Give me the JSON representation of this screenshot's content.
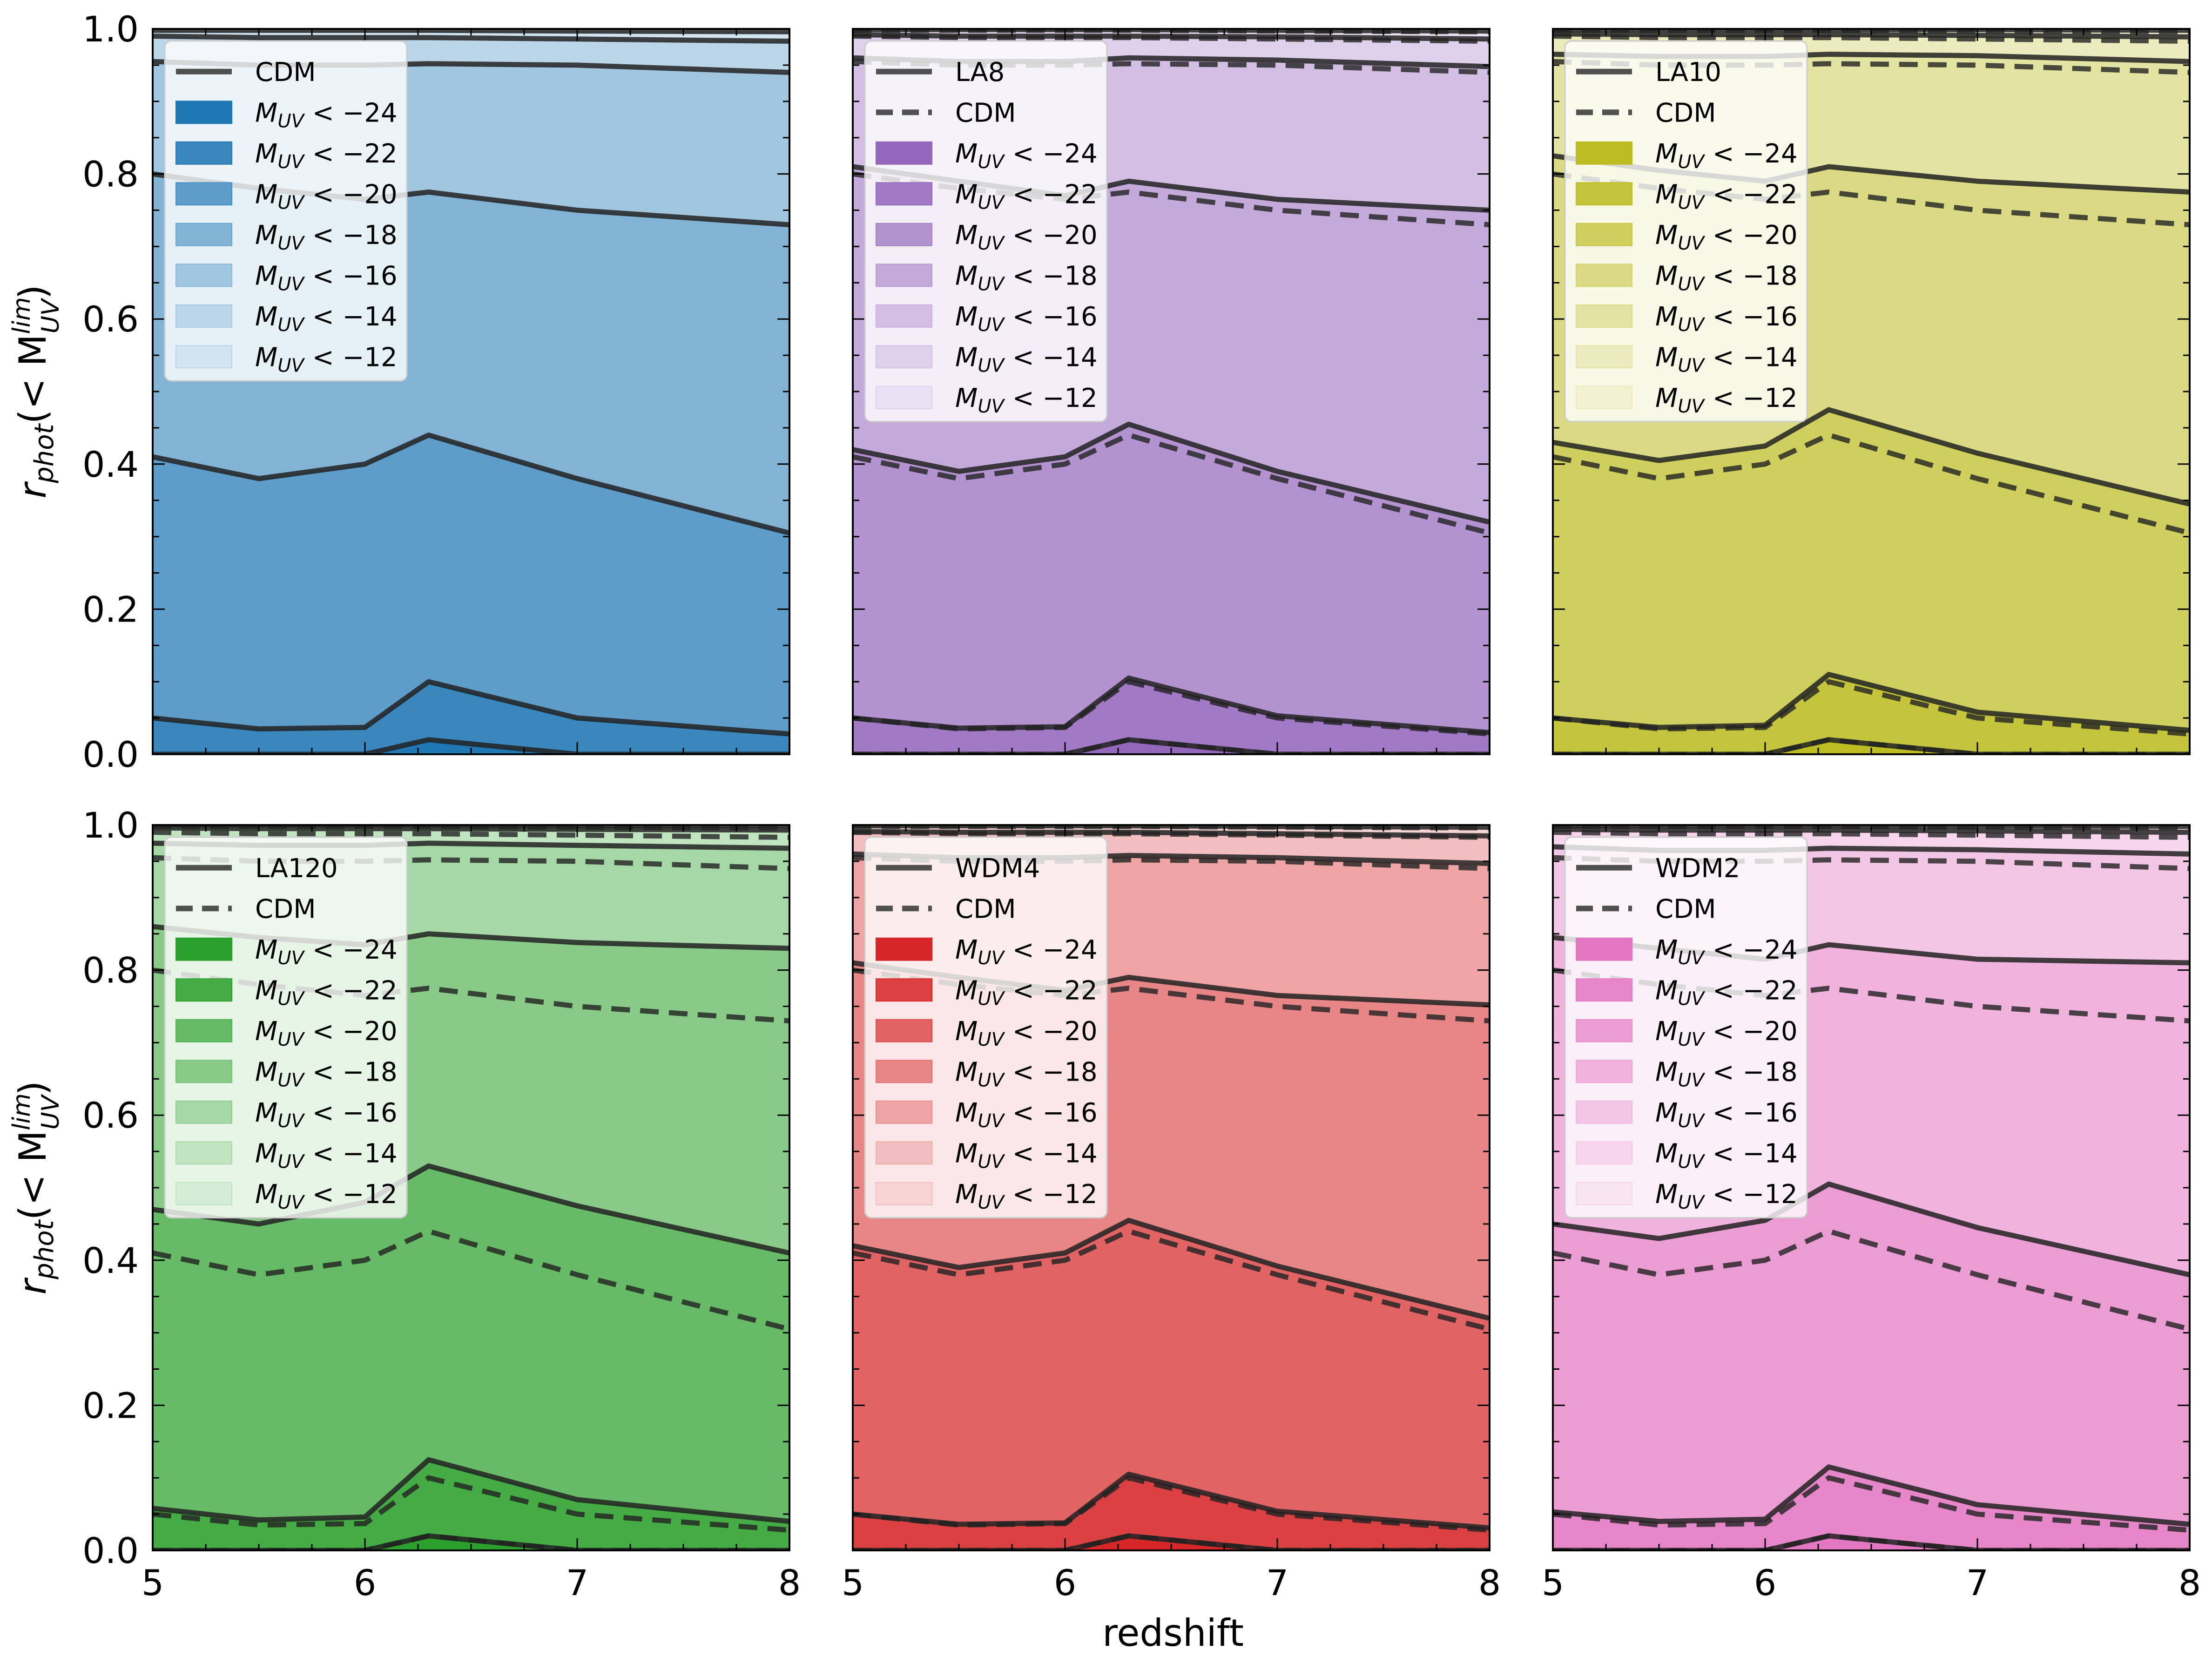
{
  "chart_data": {
    "type": "area",
    "title": "",
    "xlabel": "redshift",
    "ylabel": "r_phot(< M_UV^lim)",
    "xlim": [
      5,
      8
    ],
    "ylim": [
      0,
      1
    ],
    "xticks": [
      "5",
      "6",
      "7",
      "8"
    ],
    "yticks": [
      "0.0",
      "0.2",
      "0.4",
      "0.6",
      "0.8",
      "1.0"
    ],
    "x": [
      5,
      5.5,
      6,
      6.3,
      7,
      8
    ],
    "thresholds": [
      "-24",
      "-22",
      "-20",
      "-18",
      "-16",
      "-14",
      "-12"
    ],
    "legend_position": "upper-left",
    "cdm_curves": [
      [
        0.0,
        0.0,
        0.0,
        0.02,
        0.0,
        0.0
      ],
      [
        0.05,
        0.035,
        0.037,
        0.1,
        0.05,
        0.028
      ],
      [
        0.41,
        0.38,
        0.4,
        0.44,
        0.38,
        0.305
      ],
      [
        0.8,
        0.78,
        0.765,
        0.775,
        0.75,
        0.73
      ],
      [
        0.955,
        0.95,
        0.95,
        0.952,
        0.95,
        0.94
      ],
      [
        0.99,
        0.988,
        0.988,
        0.988,
        0.986,
        0.983
      ],
      [
        0.998,
        0.998,
        0.998,
        0.998,
        0.997,
        0.996
      ]
    ],
    "panels": [
      {
        "model": "CDM",
        "color": "#1f77b4",
        "legend_model_label": "CDM",
        "show_cdm_reference": false,
        "curves": [
          [
            0.0,
            0.0,
            0.0,
            0.02,
            0.0,
            0.0
          ],
          [
            0.05,
            0.035,
            0.037,
            0.1,
            0.05,
            0.028
          ],
          [
            0.41,
            0.38,
            0.4,
            0.44,
            0.38,
            0.305
          ],
          [
            0.8,
            0.78,
            0.765,
            0.775,
            0.75,
            0.73
          ],
          [
            0.955,
            0.95,
            0.95,
            0.952,
            0.95,
            0.94
          ],
          [
            0.99,
            0.988,
            0.988,
            0.988,
            0.986,
            0.983
          ],
          [
            0.998,
            0.998,
            0.998,
            0.998,
            0.997,
            0.996
          ]
        ]
      },
      {
        "model": "LA8",
        "color": "#9467bd",
        "legend_model_label": "LA8",
        "show_cdm_reference": true,
        "curves": [
          [
            0.0,
            0.0,
            0.0,
            0.02,
            0.0,
            0.0
          ],
          [
            0.05,
            0.036,
            0.038,
            0.105,
            0.053,
            0.03
          ],
          [
            0.42,
            0.39,
            0.41,
            0.455,
            0.39,
            0.32
          ],
          [
            0.81,
            0.79,
            0.77,
            0.79,
            0.765,
            0.75
          ],
          [
            0.96,
            0.955,
            0.955,
            0.96,
            0.957,
            0.948
          ],
          [
            0.992,
            0.99,
            0.99,
            0.99,
            0.989,
            0.986
          ],
          [
            0.999,
            0.999,
            0.999,
            0.999,
            0.998,
            0.997
          ]
        ]
      },
      {
        "model": "LA10",
        "color": "#bcbd22",
        "legend_model_label": "LA10",
        "show_cdm_reference": true,
        "curves": [
          [
            0.0,
            0.0,
            0.0,
            0.02,
            0.0,
            0.0
          ],
          [
            0.05,
            0.037,
            0.04,
            0.11,
            0.058,
            0.033
          ],
          [
            0.43,
            0.405,
            0.425,
            0.475,
            0.415,
            0.345
          ],
          [
            0.825,
            0.805,
            0.79,
            0.81,
            0.79,
            0.775
          ],
          [
            0.965,
            0.962,
            0.962,
            0.965,
            0.963,
            0.955
          ],
          [
            0.993,
            0.992,
            0.992,
            0.992,
            0.991,
            0.989
          ],
          [
            0.999,
            0.999,
            0.999,
            0.999,
            0.999,
            0.998
          ]
        ]
      },
      {
        "model": "LA120",
        "color": "#2ca02c",
        "legend_model_label": "LA120",
        "show_cdm_reference": true,
        "curves": [
          [
            0.0,
            0.0,
            0.0,
            0.02,
            0.0,
            0.0
          ],
          [
            0.058,
            0.042,
            0.046,
            0.125,
            0.07,
            0.04
          ],
          [
            0.47,
            0.45,
            0.48,
            0.53,
            0.475,
            0.41
          ],
          [
            0.86,
            0.845,
            0.835,
            0.85,
            0.838,
            0.83
          ],
          [
            0.975,
            0.972,
            0.972,
            0.975,
            0.972,
            0.968
          ],
          [
            0.996,
            0.995,
            0.995,
            0.995,
            0.994,
            0.993
          ],
          [
            1.0,
            1.0,
            1.0,
            1.0,
            0.999,
            0.999
          ]
        ]
      },
      {
        "model": "WDM4",
        "color": "#d62728",
        "legend_model_label": "WDM4",
        "show_cdm_reference": true,
        "curves": [
          [
            0.0,
            0.0,
            0.0,
            0.02,
            0.0,
            0.0
          ],
          [
            0.05,
            0.036,
            0.038,
            0.105,
            0.054,
            0.031
          ],
          [
            0.42,
            0.39,
            0.41,
            0.455,
            0.392,
            0.32
          ],
          [
            0.81,
            0.79,
            0.772,
            0.79,
            0.765,
            0.752
          ],
          [
            0.96,
            0.955,
            0.955,
            0.958,
            0.955,
            0.947
          ],
          [
            0.991,
            0.99,
            0.99,
            0.99,
            0.988,
            0.985
          ],
          [
            0.999,
            0.999,
            0.999,
            0.999,
            0.998,
            0.997
          ]
        ]
      },
      {
        "model": "WDM2",
        "color": "#e377c2",
        "legend_model_label": "WDM2",
        "show_cdm_reference": true,
        "curves": [
          [
            0.0,
            0.0,
            0.0,
            0.02,
            0.0,
            0.0
          ],
          [
            0.053,
            0.04,
            0.043,
            0.115,
            0.063,
            0.036
          ],
          [
            0.45,
            0.43,
            0.455,
            0.505,
            0.445,
            0.38
          ],
          [
            0.845,
            0.83,
            0.815,
            0.835,
            0.815,
            0.81
          ],
          [
            0.97,
            0.965,
            0.965,
            0.968,
            0.966,
            0.96
          ],
          [
            0.994,
            0.993,
            0.993,
            0.993,
            0.992,
            0.99
          ],
          [
            0.999,
            0.999,
            0.999,
            0.999,
            0.999,
            0.998
          ]
        ]
      }
    ]
  },
  "legend_text": {
    "cdm_label": "CDM",
    "threshold_prefix": "M",
    "threshold_sub": "UV",
    "threshold_relation": " < ",
    "minus_sign": "−"
  },
  "ylabel_parts": {
    "r": "r",
    "r_sub": "phot",
    "open": "(< M",
    "m_sup": "lim",
    "m_sub": "UV",
    "close": ")"
  },
  "style": {
    "edge_color": "#222222",
    "fill_alphas": [
      1.0,
      0.88,
      0.72,
      0.56,
      0.42,
      0.3,
      0.2
    ]
  }
}
